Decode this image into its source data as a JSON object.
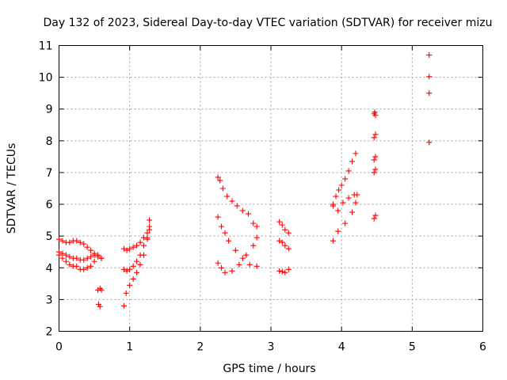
{
  "chart_data": {
    "type": "scatter",
    "title": "Day 132 of 2023, Sidereal Day-to-day VTEC variation (SDTVAR) for receiver mizu",
    "xlabel": "GPS time / hours",
    "ylabel": "SDTVAR / TECUs",
    "xlim": [
      0,
      6
    ],
    "ylim": [
      2,
      11
    ],
    "xticks": [
      "0",
      "1",
      "2",
      "3",
      "4",
      "5",
      "6"
    ],
    "yticks": [
      "2",
      "3",
      "4",
      "5",
      "6",
      "7",
      "8",
      "9",
      "10",
      "11"
    ],
    "grid": true,
    "marker": "plus",
    "color": "#ff0000",
    "x": [
      0.0,
      0.05,
      0.1,
      0.15,
      0.2,
      0.25,
      0.3,
      0.35,
      0.4,
      0.45,
      0.5,
      0.55,
      0.6,
      0.0,
      0.05,
      0.1,
      0.15,
      0.2,
      0.25,
      0.3,
      0.35,
      0.4,
      0.45,
      0.5,
      0.55,
      0.6,
      0.0,
      0.05,
      0.1,
      0.15,
      0.2,
      0.25,
      0.3,
      0.35,
      0.4,
      0.45,
      0.5,
      0.55,
      0.55,
      0.58,
      0.6,
      0.56,
      0.58,
      0.92,
      0.95,
      1.0,
      1.05,
      1.1,
      1.15,
      1.2,
      1.25,
      1.28,
      0.92,
      0.96,
      1.0,
      1.05,
      1.1,
      1.15,
      1.2,
      1.25,
      1.28,
      0.92,
      0.96,
      1.0,
      1.05,
      1.1,
      1.15,
      1.2,
      1.25,
      1.28,
      2.25,
      2.28,
      2.32,
      2.38,
      2.45,
      2.52,
      2.6,
      2.68,
      2.75,
      2.8,
      2.25,
      2.3,
      2.35,
      2.4,
      2.5,
      2.6,
      2.7,
      2.8,
      2.25,
      2.3,
      2.35,
      2.45,
      2.55,
      2.65,
      2.75,
      2.8,
      3.12,
      3.16,
      3.2,
      3.25,
      3.12,
      3.16,
      3.2,
      3.25,
      3.12,
      3.16,
      3.2,
      3.25,
      3.88,
      3.92,
      3.96,
      4.0,
      4.05,
      4.1,
      4.15,
      4.2,
      3.88,
      3.95,
      4.02,
      4.1,
      4.18,
      4.22,
      3.88,
      3.95,
      4.05,
      4.15,
      4.2,
      4.46,
      4.47,
      4.48,
      4.46,
      4.48,
      4.46,
      4.48,
      4.46,
      4.48,
      4.46,
      4.48,
      5.24,
      5.24,
      5.24,
      5.24
    ],
    "y": [
      4.9,
      4.85,
      4.8,
      4.8,
      4.85,
      4.85,
      4.8,
      4.75,
      4.65,
      4.55,
      4.45,
      4.4,
      4.3,
      4.5,
      4.45,
      4.4,
      4.35,
      4.3,
      4.3,
      4.25,
      4.25,
      4.3,
      4.35,
      4.4,
      4.35,
      4.3,
      4.4,
      4.3,
      4.2,
      4.1,
      4.05,
      4.05,
      3.95,
      3.95,
      4.0,
      4.05,
      4.2,
      4.4,
      3.3,
      3.35,
      3.3,
      2.85,
      2.78,
      2.8,
      3.2,
      3.45,
      3.65,
      3.85,
      4.1,
      4.4,
      4.9,
      5.5,
      4.6,
      4.55,
      4.6,
      4.65,
      4.7,
      4.8,
      4.95,
      5.1,
      5.3,
      3.95,
      3.9,
      3.95,
      4.05,
      4.2,
      4.4,
      4.7,
      4.95,
      5.2,
      6.85,
      6.75,
      6.5,
      6.25,
      6.1,
      5.95,
      5.8,
      5.7,
      5.4,
      5.3,
      5.6,
      5.3,
      5.1,
      4.85,
      4.55,
      4.3,
      4.1,
      4.05,
      4.15,
      4.0,
      3.85,
      3.9,
      4.1,
      4.4,
      4.7,
      4.95,
      5.45,
      5.35,
      5.2,
      5.1,
      4.85,
      4.8,
      4.7,
      4.6,
      3.9,
      3.88,
      3.85,
      3.95,
      5.95,
      6.25,
      6.45,
      6.6,
      6.8,
      7.05,
      7.35,
      7.6,
      6.0,
      5.8,
      6.05,
      6.2,
      6.3,
      6.3,
      4.85,
      5.15,
      5.4,
      5.75,
      6.05,
      8.85,
      8.9,
      8.8,
      8.1,
      8.2,
      7.4,
      7.5,
      7.0,
      7.1,
      5.55,
      5.65,
      10.7,
      10.02,
      9.5,
      7.95
    ]
  }
}
